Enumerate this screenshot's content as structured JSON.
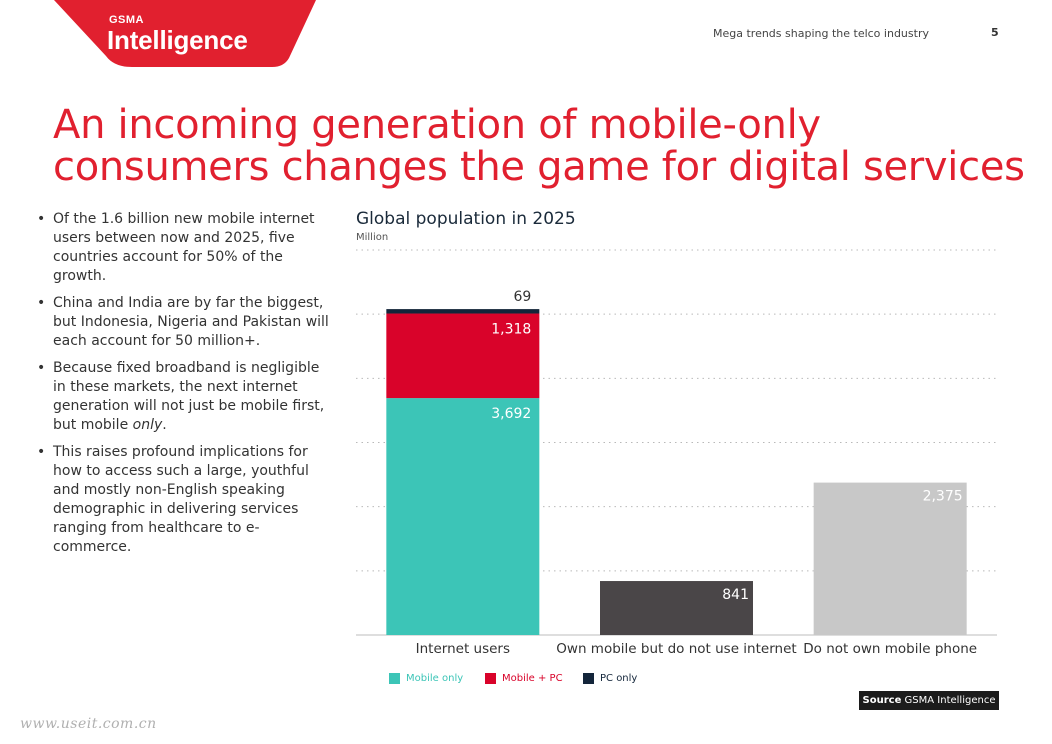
{
  "brand": {
    "top": "GSMA",
    "main": "Intelligence"
  },
  "header": {
    "section": "Mega trends shaping the telco industry",
    "page": "5"
  },
  "title": "An incoming generation of mobile-only consumers changes the game for digital services",
  "bullets": [
    "Of the 1.6 billion new mobile internet users between now and 2025, five countries account for 50% of the growth.",
    "China and India are by far the biggest, but Indonesia, Nigeria and Pakistan will each account for 50 million+.",
    "Because fixed broadband is negligible in these markets, the next internet generation will not just be mobile first, but mobile only.",
    "This raises profound implications for how to access such a large, youthful and mostly non-English speaking demographic in delivering services ranging from healthcare to e-commerce."
  ],
  "source": {
    "label": "Source",
    "text": "GSMA Intelligence"
  },
  "watermark": "www.useit.com.cn",
  "colors": {
    "accent": "#e1202f",
    "mobile_only": "#3cc5b7",
    "mobile_pc": "#d9032a",
    "pc_only": "#13253a",
    "dark_bar": "#4a4648",
    "grey_bar": "#c8c8c8"
  },
  "chart_data": {
    "type": "bar",
    "stacked": true,
    "title": "Global population in 2025",
    "subtitle": "Million",
    "categories": [
      "Internet users",
      "Own mobile but do not use internet",
      "Do not own mobile phone"
    ],
    "series": [
      {
        "name": "Mobile only",
        "color": "#3cc5b7",
        "values": [
          3692,
          null,
          null
        ]
      },
      {
        "name": "Mobile + PC",
        "color": "#d9032a",
        "values": [
          1318,
          null,
          null
        ]
      },
      {
        "name": "PC only",
        "color": "#13253a",
        "values": [
          69,
          null,
          null
        ]
      }
    ],
    "single_bars": [
      {
        "category": "Own mobile but do not use internet",
        "value": 841,
        "color": "#4a4648"
      },
      {
        "category": "Do not own mobile phone",
        "value": 2375,
        "color": "#c8c8c8"
      }
    ],
    "data_labels": [
      "3,692",
      "1,318",
      "69",
      "841",
      "2,375"
    ],
    "ylim": [
      0,
      6000
    ],
    "grid": true,
    "legend": "bottom"
  }
}
